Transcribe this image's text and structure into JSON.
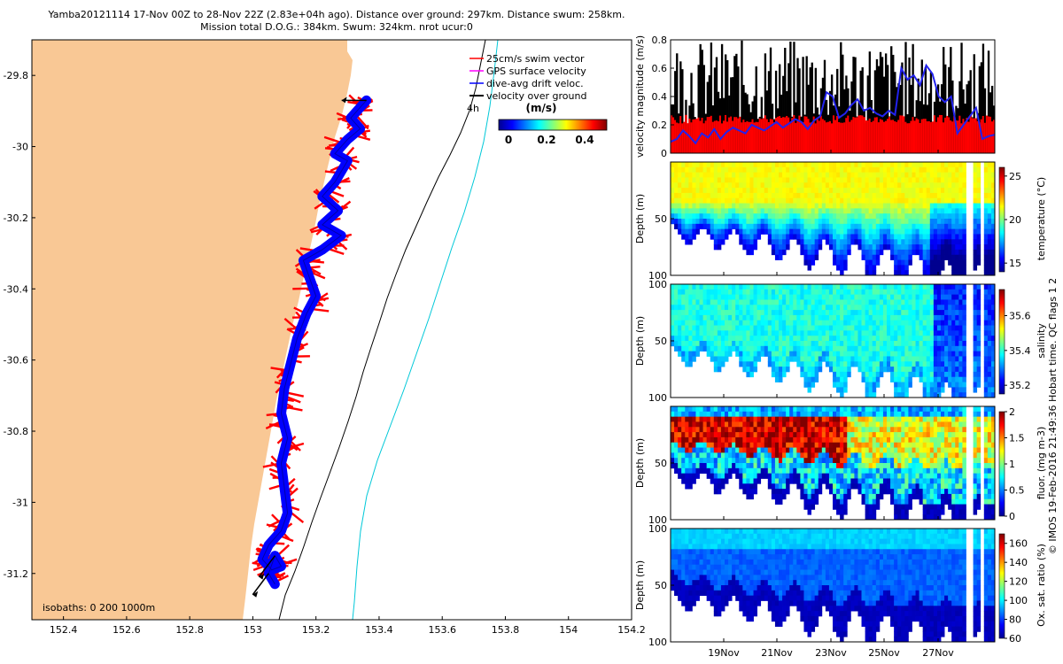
{
  "title": {
    "line1": "Yamba20121114 17-Nov 00Z to 28-Nov 22Z (2.83e+04h ago). Distance over ground: 297km. Distance swum: 258km.",
    "line2": "Mission total D.O.G.: 384km. Swum: 324km. nrot ucur:0"
  },
  "colors": {
    "land": "#f9c895",
    "swim": "#ff0000",
    "gps": "#ff00ff",
    "drift": "#0000ff",
    "ground": "#000000",
    "isobath_200": "#000000",
    "isobath_1000": "#00c8d8"
  },
  "map": {
    "xticks": [
      "152.4",
      "152.6",
      "152.8",
      "153",
      "153.2",
      "153.4",
      "153.6",
      "153.8",
      "154",
      "154.2"
    ],
    "yticks": [
      "-29.8",
      "-30",
      "-30.2",
      "-30.4",
      "-30.6",
      "-30.8",
      "-31",
      "-31.2"
    ],
    "xlim": [
      152.3,
      154.2
    ],
    "ylim": [
      -31.33,
      -29.7
    ],
    "legend": [
      {
        "label": "25cm/s swim vector",
        "color": "#ff0000"
      },
      {
        "label": "GPS surface velocity",
        "color": "#ff00ff"
      },
      {
        "label": "dive-avg drift veloc.",
        "color": "#0000ff"
      },
      {
        "label": "velocity over ground",
        "color": "#000000"
      }
    ],
    "colorbar": {
      "title": "(m/s)",
      "ticks": [
        "0",
        "0.2",
        "0.4"
      ],
      "range": [
        0,
        0.45
      ]
    },
    "annotation_4h": "4h",
    "isobaths_label": "isobaths: 0   200  1000m",
    "track": [
      [
        153.36,
        -29.87
      ],
      [
        153.34,
        -29.89
      ],
      [
        153.31,
        -29.92
      ],
      [
        153.34,
        -29.95
      ],
      [
        153.3,
        -29.98
      ],
      [
        153.26,
        -30.02
      ],
      [
        153.3,
        -30.04
      ],
      [
        153.26,
        -30.1
      ],
      [
        153.22,
        -30.14
      ],
      [
        153.27,
        -30.18
      ],
      [
        153.22,
        -30.22
      ],
      [
        153.28,
        -30.25
      ],
      [
        153.22,
        -30.29
      ],
      [
        153.16,
        -30.32
      ],
      [
        153.18,
        -30.37
      ],
      [
        153.2,
        -30.42
      ],
      [
        153.17,
        -30.47
      ],
      [
        153.14,
        -30.54
      ],
      [
        153.12,
        -30.61
      ],
      [
        153.1,
        -30.68
      ],
      [
        153.09,
        -30.75
      ],
      [
        153.11,
        -30.82
      ],
      [
        153.09,
        -30.89
      ],
      [
        153.1,
        -30.96
      ],
      [
        153.11,
        -31.03
      ],
      [
        153.09,
        -31.08
      ],
      [
        153.05,
        -31.12
      ],
      [
        153.03,
        -31.16
      ],
      [
        153.06,
        -31.19
      ],
      [
        153.09,
        -31.18
      ],
      [
        153.07,
        -31.15
      ],
      [
        153.05,
        -31.2
      ],
      [
        153.07,
        -31.23
      ]
    ]
  },
  "velocity_panel": {
    "ylabel": "velocity magnitude (m/s)",
    "yticks": [
      "0",
      "0.2",
      "0.4",
      "0.6",
      "0.8"
    ],
    "ylim": [
      0,
      0.8
    ],
    "drift_speed": [
      0.08,
      0.1,
      0.16,
      0.12,
      0.07,
      0.14,
      0.11,
      0.17,
      0.1,
      0.15,
      0.18,
      0.16,
      0.14,
      0.2,
      0.18,
      0.16,
      0.19,
      0.22,
      0.18,
      0.21,
      0.24,
      0.22,
      0.17,
      0.23,
      0.26,
      0.43,
      0.4,
      0.25,
      0.28,
      0.34,
      0.38,
      0.3,
      0.32,
      0.28,
      0.26,
      0.3,
      0.27,
      0.6,
      0.52,
      0.55,
      0.48,
      0.62,
      0.56,
      0.4,
      0.36,
      0.4,
      0.14,
      0.2,
      0.26,
      0.32,
      0.1,
      0.12,
      0.13
    ]
  },
  "profile_panels": [
    {
      "name": "temperature",
      "ylabel": "Depth (m)",
      "clabel": "temperature (°C)",
      "cticks": [
        "15",
        "20",
        "25"
      ],
      "crange": [
        14,
        26
      ],
      "yticks": [
        "",
        "50",
        "100"
      ],
      "colormode": "temp"
    },
    {
      "name": "salinity",
      "ylabel": "Depth (m)",
      "clabel": "salinity",
      "cticks": [
        "35.2",
        "35.4",
        "35.6"
      ],
      "crange": [
        35.15,
        35.75
      ],
      "yticks": [
        "100",
        "50",
        "100"
      ],
      "colormode": "sal"
    },
    {
      "name": "fluor",
      "ylabel": "Depth (m)",
      "clabel": "fluor. (mg m-3)",
      "cticks": [
        "0",
        "0.5",
        "1",
        "1.5",
        "2"
      ],
      "crange": [
        0,
        2
      ],
      "yticks": [
        "",
        "50",
        "100"
      ],
      "colormode": "fluor"
    },
    {
      "name": "oxygen",
      "ylabel": "Depth (m)",
      "clabel": "Ox. sat. ratio (%)",
      "cticks": [
        "60",
        "80",
        "100",
        "120",
        "140",
        "160"
      ],
      "crange": [
        60,
        170
      ],
      "yticks": [
        "100",
        "50",
        "100"
      ],
      "colormode": "oxy"
    }
  ],
  "time_axis": {
    "ticks": [
      "19Nov",
      "21Nov",
      "23Nov",
      "25Nov",
      "27Nov"
    ],
    "range": [
      "17Nov",
      "29Nov"
    ]
  },
  "credit": "© IMOS 19-Feb-2016 21:49:36 Hobart time. QC flags 1  2"
}
